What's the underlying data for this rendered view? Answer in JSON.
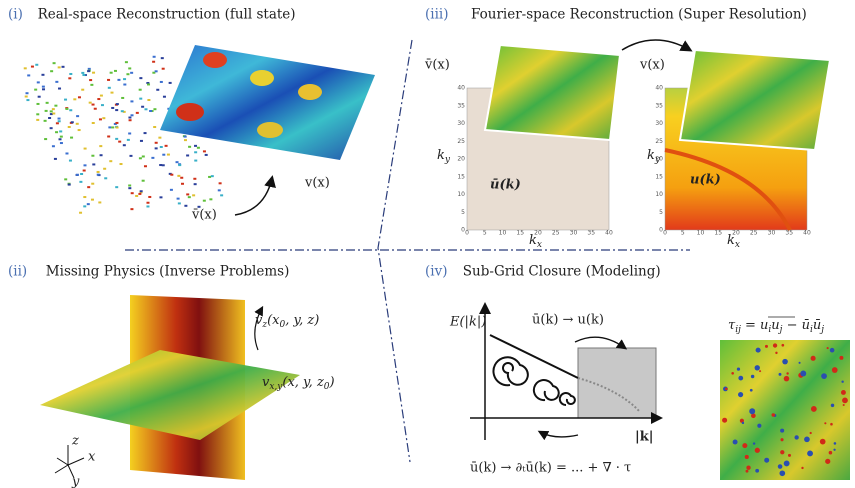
{
  "panels": [
    {
      "label": "(i)",
      "title": "Real-space Reconstruction (full state)",
      "input": "v̄(x)",
      "output": "v(x)"
    },
    {
      "label": "(iii)",
      "title": "Fourier-space Reconstruction (Super Resolution)",
      "input": "v̄(x)",
      "output": "v(x)",
      "ky": [
        "k",
        "y"
      ],
      "kx": [
        "k",
        "x"
      ],
      "left_field": "ū(k)",
      "right_field": "u(k)",
      "ticks": [
        "0",
        "5",
        "10",
        "15",
        "20",
        "25",
        "30",
        "35",
        "40"
      ]
    },
    {
      "label": "(ii)",
      "title": "Missing Physics (Inverse Problems)",
      "vz": [
        "v",
        "z",
        "(x",
        "0",
        ", y, z)"
      ],
      "vxy": [
        "v",
        "x,y",
        "(x, y, z",
        "0",
        ")"
      ],
      "axes": [
        "z",
        "x",
        "y"
      ]
    },
    {
      "label": "(iv)",
      "title": "Sub-Grid Closure (Modeling)",
      "ylabel": "E(|k|)",
      "transfer": "ū(k) → u(k)",
      "xlabel": "|k|",
      "equation": "ū(k) → ∂ₜū(k) = ... + ∇ · τ",
      "tau": [
        "τ",
        "ij",
        " = u",
        "i",
        "u",
        "j",
        " − ū",
        "i",
        "ū",
        "j"
      ]
    }
  ]
}
